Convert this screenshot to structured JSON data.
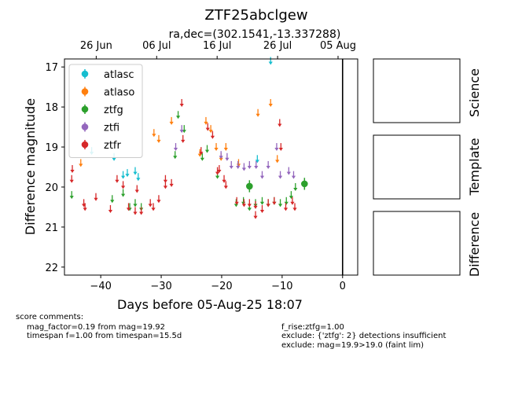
{
  "chart_data": {
    "type": "scatter",
    "title": "ZTF25abclgew",
    "subtitle": "ra,dec=(302.1541,-13.337288)",
    "xlabel": "Days before 05-Aug-25 18:07",
    "ylabel": "Difference magnitude",
    "xlim": [
      -46,
      2.5
    ],
    "ylim": [
      22.2,
      16.8
    ],
    "y_inverted": true,
    "x_ticks": [
      -40,
      -30,
      -20,
      -10,
      0
    ],
    "y_ticks": [
      17,
      18,
      19,
      20,
      21,
      22
    ],
    "top_axis_ticks": [
      {
        "label": "26 Jun",
        "x": -40.75
      },
      {
        "label": "06 Jul",
        "x": -30.75
      },
      {
        "label": "16 Jul",
        "x": -20.75
      },
      {
        "label": "26 Jul",
        "x": -10.75
      },
      {
        "label": "05 Aug",
        "x": -0.75
      }
    ],
    "vertical_line_x": 0,
    "legend_position": "upper-left",
    "series": [
      {
        "name": "atlasc",
        "color": "#17becf",
        "limits": [
          [
            -41.5,
            19.1
          ],
          [
            -37.8,
            19.25
          ],
          [
            -36.3,
            19.7
          ],
          [
            -35.6,
            19.65
          ],
          [
            -34.3,
            19.6
          ],
          [
            -33.8,
            19.75
          ],
          [
            -11.9,
            16.85
          ],
          [
            -14.1,
            19.3
          ]
        ],
        "detections": []
      },
      {
        "name": "atlaso",
        "color": "#ff7f0e",
        "limits": [
          [
            -43.3,
            19.4
          ],
          [
            -31.2,
            18.65
          ],
          [
            -30.4,
            18.8
          ],
          [
            -28.3,
            18.35
          ],
          [
            -23.6,
            19.15
          ],
          [
            -22.6,
            18.35
          ],
          [
            -21.8,
            18.55
          ],
          [
            -20.9,
            19.0
          ],
          [
            -20.1,
            19.25
          ],
          [
            -19.3,
            19.0
          ],
          [
            -17.2,
            19.4
          ],
          [
            -14.0,
            18.15
          ],
          [
            -11.9,
            17.9
          ],
          [
            -10.8,
            19.3
          ]
        ],
        "detections": []
      },
      {
        "name": "ztfg",
        "color": "#2ca02c",
        "limits": [
          [
            -44.8,
            20.2
          ],
          [
            -38.1,
            20.3
          ],
          [
            -36.3,
            20.15
          ],
          [
            -35.2,
            20.5
          ],
          [
            -34.3,
            20.4
          ],
          [
            -33.3,
            20.5
          ],
          [
            -27.2,
            18.2
          ],
          [
            -26.2,
            18.55
          ],
          [
            -27.7,
            19.2
          ],
          [
            -23.2,
            19.25
          ],
          [
            -22.4,
            19.05
          ],
          [
            -20.7,
            19.7
          ],
          [
            -17.6,
            20.4
          ],
          [
            -16.4,
            20.35
          ],
          [
            -15.4,
            20.5
          ],
          [
            -14.4,
            20.4
          ],
          [
            -13.3,
            20.35
          ],
          [
            -12.3,
            20.4
          ],
          [
            -11.3,
            20.35
          ],
          [
            -10.3,
            20.4
          ],
          [
            -9.3,
            20.35
          ],
          [
            -8.5,
            20.2
          ],
          [
            -7.8,
            20.0
          ]
        ],
        "detections": [
          {
            "x": -15.4,
            "y": 19.98,
            "err": 0.15
          },
          {
            "x": -6.3,
            "y": 19.92,
            "err": 0.15
          }
        ]
      },
      {
        "name": "ztfi",
        "color": "#9467bd",
        "limits": [
          [
            -27.6,
            19.0
          ],
          [
            -26.6,
            18.55
          ],
          [
            -20.1,
            19.2
          ],
          [
            -19.1,
            19.25
          ],
          [
            -18.4,
            19.45
          ],
          [
            -17.3,
            19.45
          ],
          [
            -16.3,
            19.5
          ],
          [
            -15.4,
            19.45
          ],
          [
            -14.3,
            19.45
          ],
          [
            -13.3,
            19.7
          ],
          [
            -12.3,
            19.45
          ],
          [
            -10.9,
            19.0
          ],
          [
            -10.3,
            19.7
          ],
          [
            -8.9,
            19.6
          ],
          [
            -8.1,
            19.7
          ]
        ],
        "detections": []
      },
      {
        "name": "ztfr",
        "color": "#d62728",
        "limits": [
          [
            -44.7,
            19.55
          ],
          [
            -44.8,
            19.8
          ],
          [
            -42.8,
            20.4
          ],
          [
            -42.6,
            20.5
          ],
          [
            -40.8,
            20.25
          ],
          [
            -38.4,
            20.55
          ],
          [
            -37.3,
            19.8
          ],
          [
            -36.3,
            19.95
          ],
          [
            -35.4,
            20.5
          ],
          [
            -34.3,
            20.6
          ],
          [
            -34.0,
            20.05
          ],
          [
            -33.3,
            20.6
          ],
          [
            -31.8,
            20.4
          ],
          [
            -31.3,
            20.5
          ],
          [
            -30.4,
            20.3
          ],
          [
            -29.3,
            19.8
          ],
          [
            -29.3,
            19.95
          ],
          [
            -28.3,
            19.9
          ],
          [
            -26.6,
            17.9
          ],
          [
            -26.4,
            18.8
          ],
          [
            -23.4,
            19.1
          ],
          [
            -22.3,
            18.5
          ],
          [
            -21.5,
            18.7
          ],
          [
            -20.7,
            19.6
          ],
          [
            -20.4,
            19.55
          ],
          [
            -19.6,
            19.8
          ],
          [
            -19.3,
            19.95
          ],
          [
            -17.5,
            20.35
          ],
          [
            -16.3,
            20.4
          ],
          [
            -15.4,
            20.4
          ],
          [
            -14.4,
            20.45
          ],
          [
            -14.4,
            20.7
          ],
          [
            -13.3,
            20.55
          ],
          [
            -12.3,
            20.4
          ],
          [
            -11.3,
            20.35
          ],
          [
            -10.4,
            18.4
          ],
          [
            -10.2,
            19.0
          ],
          [
            -9.4,
            20.5
          ],
          [
            -8.3,
            20.35
          ],
          [
            -7.9,
            20.5
          ]
        ],
        "detections": []
      }
    ]
  },
  "image_panels": [
    "Science",
    "Template",
    "Difference"
  ],
  "comments": {
    "heading": "score comments:",
    "left": [
      "mag_factor=0.19 from mag=19.92",
      "timespan f=1.00 from timespan=15.5d"
    ],
    "right": [
      "f_rise:ztfg=1.00",
      "exclude: {'ztfg': 2} detections insufficient",
      "exclude: mag=19.9>19.0 (faint lim)"
    ]
  }
}
